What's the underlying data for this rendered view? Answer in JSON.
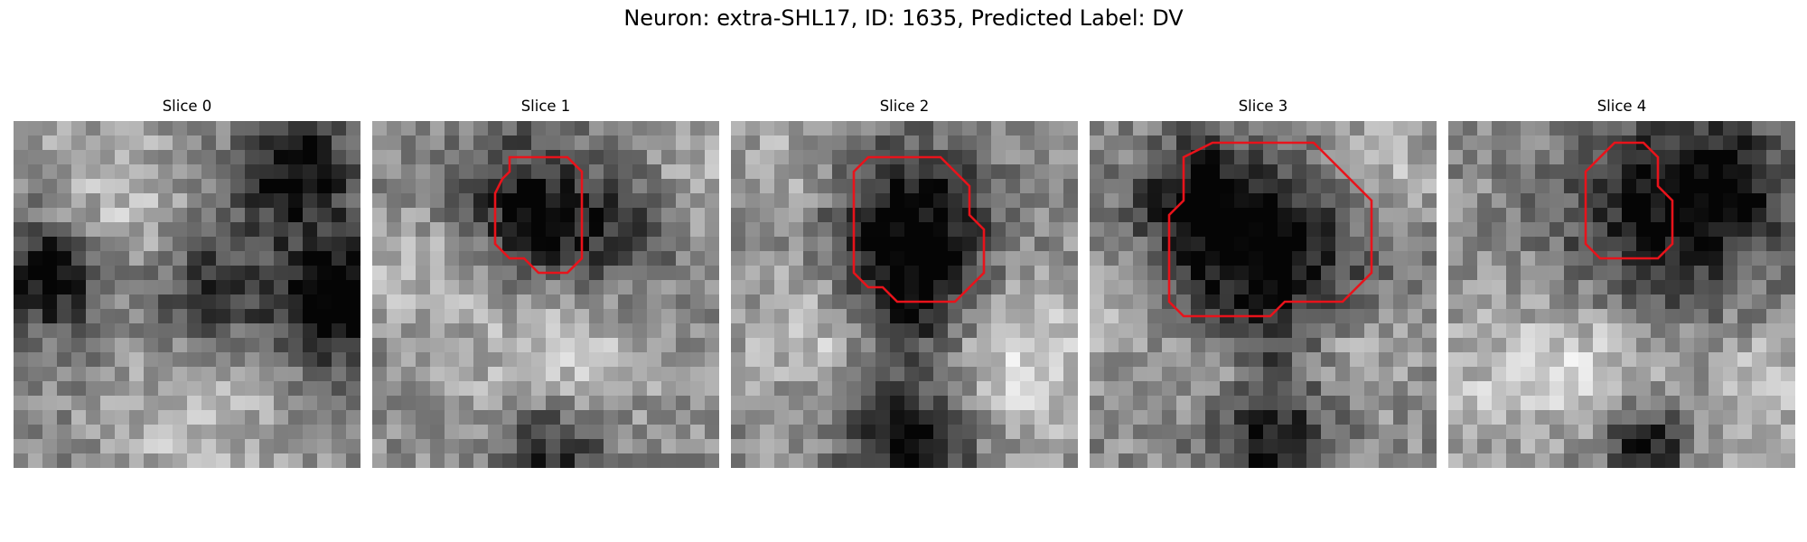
{
  "figure": {
    "title": "Neuron: extra-SHL17, ID: 1635, Predicted Label: DV"
  },
  "colors": {
    "contour": "#e8131b",
    "colormap": "gray"
  },
  "slices": [
    {
      "title": "Slice 0",
      "contour": null
    },
    {
      "title": "Slice 1",
      "contour": [
        [
          9.5,
          2.5
        ],
        [
          13.5,
          2.5
        ],
        [
          14.5,
          3.5
        ],
        [
          14.5,
          9.5
        ],
        [
          13.5,
          10.5
        ],
        [
          11.5,
          10.5
        ],
        [
          10.5,
          9.5
        ],
        [
          9.5,
          9.5
        ],
        [
          8.5,
          8.5
        ],
        [
          8.5,
          5.0
        ],
        [
          9.0,
          4.0
        ],
        [
          9.5,
          3.5
        ]
      ]
    },
    {
      "title": "Slice 2",
      "contour": [
        [
          10.5,
          2.5
        ],
        [
          14.5,
          2.5
        ],
        [
          16.5,
          4.5
        ],
        [
          16.5,
          6.5
        ],
        [
          17.5,
          7.5
        ],
        [
          17.5,
          10.5
        ],
        [
          15.5,
          12.5
        ],
        [
          11.5,
          12.5
        ],
        [
          10.5,
          11.5
        ],
        [
          9.5,
          11.5
        ],
        [
          8.5,
          10.5
        ],
        [
          8.5,
          3.5
        ],
        [
          9.5,
          2.5
        ]
      ]
    },
    {
      "title": "Slice 3",
      "contour": [
        [
          11.5,
          1.5
        ],
        [
          15.5,
          1.5
        ],
        [
          16.5,
          2.5
        ],
        [
          17.5,
          3.5
        ],
        [
          19.5,
          5.5
        ],
        [
          19.5,
          10.5
        ],
        [
          18.5,
          11.5
        ],
        [
          17.5,
          12.5
        ],
        [
          13.5,
          12.5
        ],
        [
          12.5,
          13.5
        ],
        [
          6.5,
          13.5
        ],
        [
          5.5,
          12.5
        ],
        [
          5.5,
          6.5
        ],
        [
          6.5,
          5.5
        ],
        [
          6.5,
          2.5
        ],
        [
          8.5,
          1.5
        ]
      ]
    },
    {
      "title": "Slice 4",
      "contour": [
        [
          12.5,
          1.5
        ],
        [
          13.5,
          1.5
        ],
        [
          14.5,
          2.5
        ],
        [
          14.5,
          4.5
        ],
        [
          15.5,
          5.5
        ],
        [
          15.5,
          8.5
        ],
        [
          14.5,
          9.5
        ],
        [
          10.5,
          9.5
        ],
        [
          9.5,
          8.5
        ],
        [
          9.5,
          3.5
        ],
        [
          10.5,
          2.5
        ],
        [
          11.5,
          1.5
        ]
      ]
    }
  ]
}
